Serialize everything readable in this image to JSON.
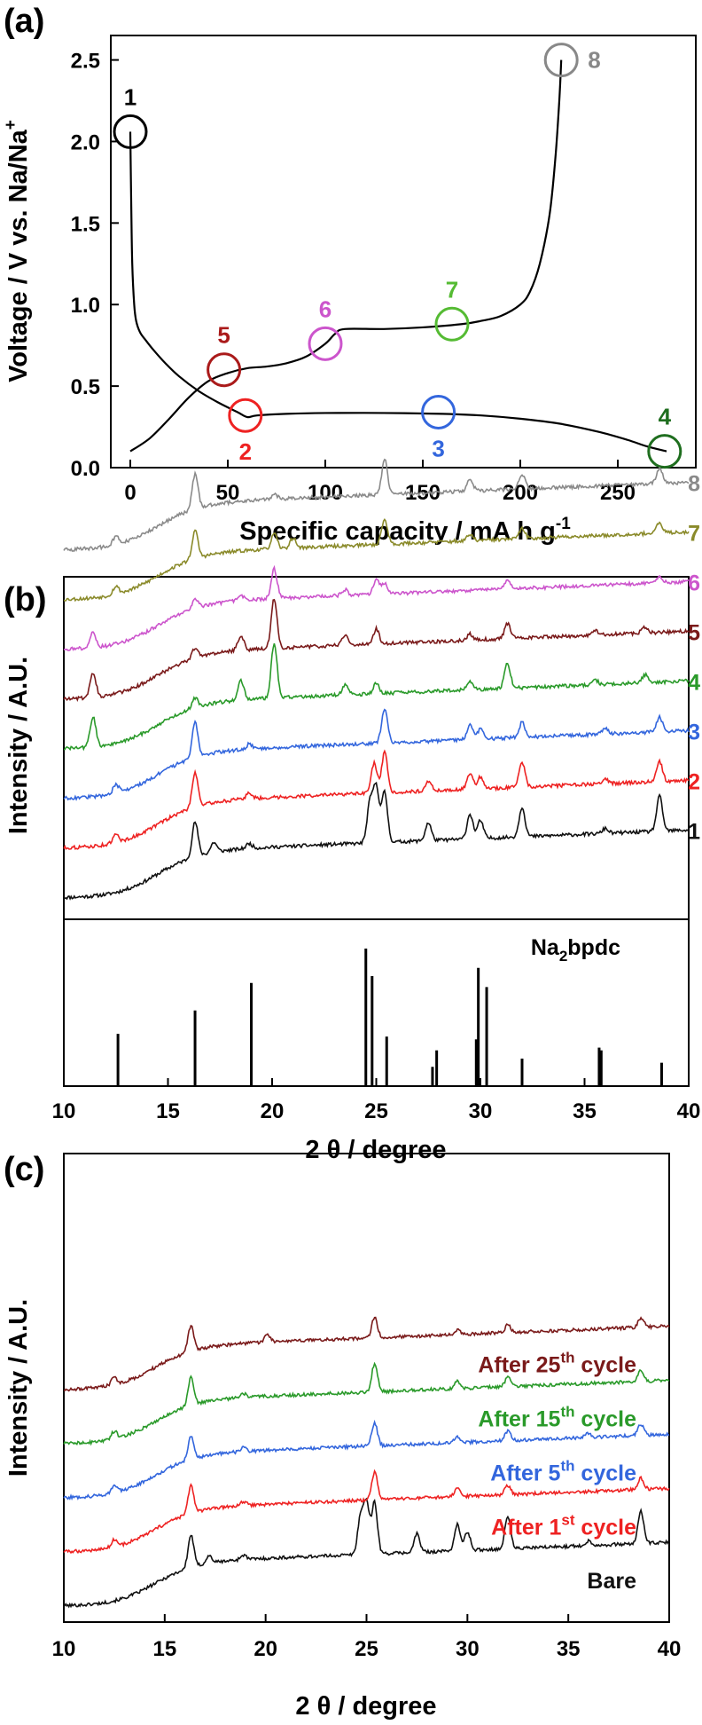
{
  "panels": {
    "a": {
      "letter": "(a)"
    },
    "b": {
      "letter": "(b)"
    },
    "c": {
      "letter": "(c)"
    }
  },
  "chart_data": [
    {
      "type": "line",
      "panel": "a",
      "xlabel": "Specific capacity / mA h g",
      "xlabel_sup": "-1",
      "ylabel": "Voltage / V vs. Na/Na",
      "ylabel_sup": "+",
      "xlim": [
        -10,
        290
      ],
      "ylim": [
        0,
        2.65
      ],
      "xticks": [
        0,
        50,
        100,
        150,
        200,
        250
      ],
      "yticks": [
        0.0,
        0.5,
        1.0,
        1.5,
        2.0,
        2.5
      ],
      "series": [
        {
          "role": "discharge",
          "color": "#000000",
          "x": [
            0,
            0.5,
            1,
            2,
            3,
            5,
            8,
            12,
            18,
            25,
            35,
            45,
            55,
            60,
            65,
            80,
            100,
            130,
            160,
            180,
            200,
            220,
            240,
            255,
            265,
            275
          ],
          "y": [
            2.06,
            1.6,
            1.25,
            1.0,
            0.9,
            0.83,
            0.78,
            0.72,
            0.64,
            0.56,
            0.47,
            0.4,
            0.34,
            0.31,
            0.32,
            0.33,
            0.335,
            0.335,
            0.33,
            0.32,
            0.3,
            0.27,
            0.22,
            0.17,
            0.13,
            0.1
          ]
        },
        {
          "role": "charge",
          "color": "#000000",
          "x": [
            0,
            10,
            20,
            30,
            40,
            50,
            60,
            70,
            80,
            90,
            100,
            105,
            110,
            130,
            150,
            170,
            180,
            190,
            200,
            205,
            210,
            215,
            218,
            220,
            221
          ],
          "y": [
            0.1,
            0.18,
            0.3,
            0.43,
            0.53,
            0.58,
            0.61,
            0.62,
            0.64,
            0.68,
            0.76,
            0.82,
            0.85,
            0.85,
            0.86,
            0.88,
            0.9,
            0.93,
            1.0,
            1.08,
            1.25,
            1.55,
            1.9,
            2.25,
            2.5
          ]
        }
      ],
      "points": [
        {
          "label": "1",
          "x": 0,
          "y": 2.06,
          "color": "#000000",
          "label_pos": "above"
        },
        {
          "label": "2",
          "x": 59,
          "y": 0.32,
          "color": "#ee2222",
          "label_pos": "below"
        },
        {
          "label": "3",
          "x": 158,
          "y": 0.34,
          "color": "#3366dd",
          "label_pos": "below"
        },
        {
          "label": "4",
          "x": 274,
          "y": 0.1,
          "color": "#1f6e1f",
          "label_pos": "above"
        },
        {
          "label": "5",
          "x": 48,
          "y": 0.6,
          "color": "#aa1a1a",
          "label_pos": "above"
        },
        {
          "label": "6",
          "x": 100,
          "y": 0.76,
          "color": "#cc55cc",
          "label_pos": "above"
        },
        {
          "label": "7",
          "x": 165,
          "y": 0.88,
          "color": "#55bb33",
          "label_pos": "above"
        },
        {
          "label": "8",
          "x": 221,
          "y": 2.5,
          "color": "#888888",
          "label_pos": "right"
        }
      ]
    },
    {
      "type": "line",
      "panel": "b",
      "xlabel": "2 θ / degree",
      "ylabel": "Intensity / A.U.",
      "xlim": [
        10,
        40
      ],
      "xticks": [
        10,
        15,
        20,
        25,
        30,
        35,
        40
      ],
      "series": [
        {
          "name": "1",
          "color": "#111111",
          "peaks": [
            [
              16.3,
              0.35
            ],
            [
              17.2,
              0.1
            ],
            [
              18.9,
              0.05
            ],
            [
              24.7,
              0.4
            ],
            [
              25.0,
              0.55
            ],
            [
              25.4,
              0.5
            ],
            [
              27.5,
              0.18
            ],
            [
              29.5,
              0.25
            ],
            [
              30.0,
              0.18
            ],
            [
              32.0,
              0.3
            ],
            [
              36.0,
              0.05
            ],
            [
              38.6,
              0.35
            ]
          ]
        },
        {
          "name": "2",
          "color": "#ee2222",
          "peaks": [
            [
              12.5,
              0.08
            ],
            [
              16.3,
              0.35
            ],
            [
              18.9,
              0.06
            ],
            [
              24.9,
              0.3
            ],
            [
              25.4,
              0.4
            ],
            [
              27.5,
              0.1
            ],
            [
              29.5,
              0.15
            ],
            [
              30.0,
              0.12
            ],
            [
              32.0,
              0.25
            ],
            [
              36.0,
              0.05
            ],
            [
              38.6,
              0.2
            ]
          ]
        },
        {
          "name": "3",
          "color": "#3366dd",
          "peaks": [
            [
              12.5,
              0.08
            ],
            [
              16.3,
              0.35
            ],
            [
              18.9,
              0.05
            ],
            [
              25.4,
              0.35
            ],
            [
              29.5,
              0.15
            ],
            [
              30.0,
              0.1
            ],
            [
              32.0,
              0.15
            ],
            [
              36.0,
              0.05
            ],
            [
              38.6,
              0.15
            ]
          ]
        },
        {
          "name": "4",
          "color": "#2a9a2a",
          "peaks": [
            [
              11.4,
              0.3
            ],
            [
              16.3,
              0.1
            ],
            [
              18.5,
              0.2
            ],
            [
              20.1,
              0.55
            ],
            [
              23.5,
              0.1
            ],
            [
              25.0,
              0.1
            ],
            [
              29.5,
              0.08
            ],
            [
              31.3,
              0.25
            ],
            [
              35.5,
              0.05
            ],
            [
              37.9,
              0.08
            ]
          ]
        },
        {
          "name": "5",
          "color": "#7a1a1a",
          "peaks": [
            [
              11.4,
              0.25
            ],
            [
              16.3,
              0.1
            ],
            [
              18.5,
              0.15
            ],
            [
              20.1,
              0.5
            ],
            [
              23.5,
              0.1
            ],
            [
              25.0,
              0.15
            ],
            [
              29.5,
              0.06
            ],
            [
              31.3,
              0.15
            ],
            [
              35.5,
              0.05
            ],
            [
              37.9,
              0.06
            ]
          ]
        },
        {
          "name": "6",
          "color": "#cc55cc",
          "peaks": [
            [
              11.4,
              0.15
            ],
            [
              16.3,
              0.1
            ],
            [
              18.5,
              0.05
            ],
            [
              20.1,
              0.3
            ],
            [
              23.5,
              0.06
            ],
            [
              25.0,
              0.15
            ],
            [
              25.4,
              0.1
            ],
            [
              31.3,
              0.08
            ],
            [
              38.6,
              0.06
            ]
          ]
        },
        {
          "name": "7",
          "color": "#8a8a2a",
          "peaks": [
            [
              12.5,
              0.08
            ],
            [
              16.3,
              0.28
            ],
            [
              20.1,
              0.15
            ],
            [
              21.0,
              0.1
            ],
            [
              25.4,
              0.25
            ],
            [
              29.5,
              0.06
            ],
            [
              32.0,
              0.1
            ],
            [
              38.6,
              0.1
            ]
          ]
        },
        {
          "name": "8",
          "color": "#8a8a8a",
          "peaks": [
            [
              12.5,
              0.08
            ],
            [
              16.3,
              0.35
            ],
            [
              20.1,
              0.05
            ],
            [
              25.4,
              0.35
            ],
            [
              29.5,
              0.12
            ],
            [
              32.0,
              0.15
            ],
            [
              38.6,
              0.15
            ]
          ]
        }
      ],
      "reference": {
        "label": "Na",
        "label_sub": "2",
        "label_tail": "bpdc",
        "sticks": [
          [
            12.6,
            0.38
          ],
          [
            16.3,
            0.55
          ],
          [
            19.0,
            0.75
          ],
          [
            24.5,
            1.0
          ],
          [
            24.8,
            0.8
          ],
          [
            25.5,
            0.36
          ],
          [
            27.7,
            0.14
          ],
          [
            27.9,
            0.26
          ],
          [
            29.8,
            0.34
          ],
          [
            29.9,
            0.86
          ],
          [
            30.3,
            0.72
          ],
          [
            32.0,
            0.2
          ],
          [
            35.7,
            0.28
          ],
          [
            35.8,
            0.26
          ],
          [
            38.7,
            0.17
          ]
        ]
      }
    },
    {
      "type": "line",
      "panel": "c",
      "xlabel": "2 θ / degree",
      "ylabel": "Intensity / A.U.",
      "xlim": [
        10,
        40
      ],
      "xticks": [
        10,
        15,
        20,
        25,
        30,
        35,
        40
      ],
      "series": [
        {
          "name": "Bare",
          "color": "#111111",
          "peaks": [
            [
              16.3,
              0.35
            ],
            [
              17.2,
              0.08
            ],
            [
              18.9,
              0.05
            ],
            [
              24.7,
              0.4
            ],
            [
              25.0,
              0.55
            ],
            [
              25.4,
              0.55
            ],
            [
              27.5,
              0.2
            ],
            [
              29.5,
              0.28
            ],
            [
              30.0,
              0.2
            ],
            [
              32.0,
              0.35
            ],
            [
              36.0,
              0.05
            ],
            [
              38.6,
              0.35
            ]
          ]
        },
        {
          "name_main": "After 1",
          "name_sup": "st",
          "name_tail": " cycle",
          "color": "#ee2222",
          "peaks": [
            [
              12.5,
              0.08
            ],
            [
              16.3,
              0.3
            ],
            [
              18.9,
              0.04
            ],
            [
              25.4,
              0.3
            ],
            [
              29.5,
              0.08
            ],
            [
              32.0,
              0.1
            ],
            [
              38.6,
              0.12
            ]
          ]
        },
        {
          "name_main": "After 5",
          "name_sup": "th",
          "name_tail": " cycle",
          "color": "#3366dd",
          "peaks": [
            [
              12.5,
              0.08
            ],
            [
              16.3,
              0.25
            ],
            [
              18.9,
              0.04
            ],
            [
              25.4,
              0.25
            ],
            [
              29.5,
              0.06
            ],
            [
              32.0,
              0.1
            ],
            [
              36.0,
              0.05
            ],
            [
              38.6,
              0.12
            ]
          ]
        },
        {
          "name_main": "After 15",
          "name_sup": "th",
          "name_tail": " cycle",
          "color": "#2a9a2a",
          "peaks": [
            [
              12.5,
              0.08
            ],
            [
              16.3,
              0.3
            ],
            [
              18.9,
              0.04
            ],
            [
              25.4,
              0.3
            ],
            [
              29.5,
              0.08
            ],
            [
              32.0,
              0.1
            ],
            [
              38.6,
              0.12
            ]
          ]
        },
        {
          "name_main": "After 25",
          "name_sup": "th",
          "name_tail": " cycle",
          "color": "#7a1a1a",
          "peaks": [
            [
              12.5,
              0.08
            ],
            [
              16.3,
              0.28
            ],
            [
              20.1,
              0.08
            ],
            [
              25.4,
              0.22
            ],
            [
              29.5,
              0.05
            ],
            [
              32.0,
              0.08
            ],
            [
              38.6,
              0.1
            ]
          ]
        }
      ]
    }
  ]
}
